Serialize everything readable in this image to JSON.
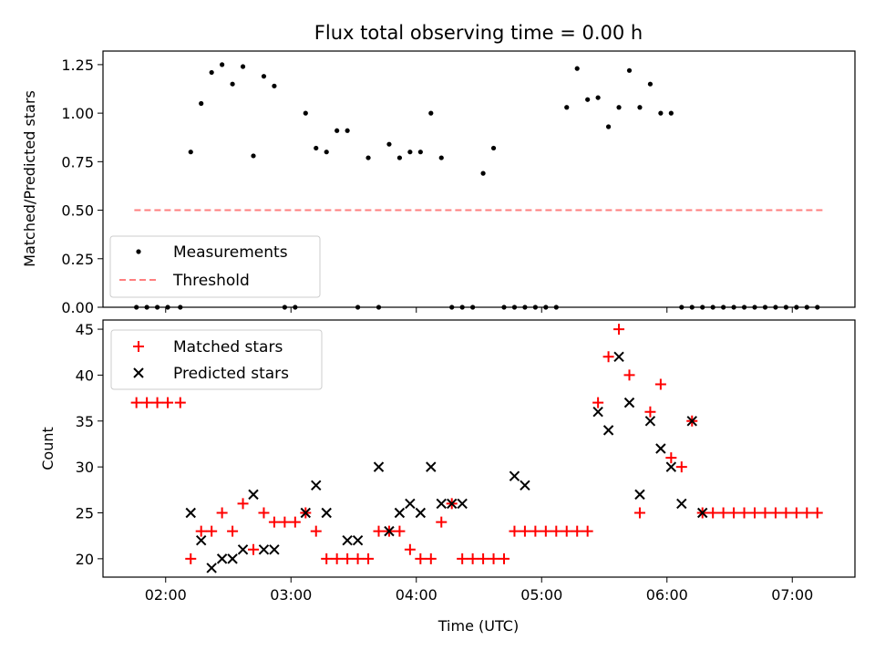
{
  "title": "Flux total observing time = 0.00 h",
  "xlabel": "Time (UTC)",
  "x_ticks": [
    "02:00",
    "03:00",
    "04:00",
    "05:00",
    "06:00",
    "07:00"
  ],
  "colors": {
    "measurements": "#000000",
    "threshold": "#ff7f7f",
    "matched": "#ff0000",
    "predicted": "#000000"
  },
  "chart_data": [
    {
      "type": "scatter",
      "ylabel": "Matched/Predicted stars",
      "xlim": [
        "01:30",
        "07:30"
      ],
      "ylim": [
        0,
        1.32
      ],
      "y_ticks": [
        "0.00",
        "0.25",
        "0.50",
        "0.75",
        "1.00",
        "1.25"
      ],
      "legend": {
        "placement": "lower-left",
        "entries": [
          "Measurements",
          "Threshold"
        ]
      },
      "threshold": {
        "name": "Threshold",
        "y": 0.5,
        "x_start": "01:45",
        "x_end": "07:15"
      },
      "series": [
        {
          "name": "Measurements",
          "x": [
            "01:46",
            "01:51",
            "01:56",
            "02:01",
            "02:07",
            "02:12",
            "02:17",
            "02:22",
            "02:27",
            "02:32",
            "02:37",
            "02:42",
            "02:47",
            "02:52",
            "02:57",
            "03:02",
            "03:07",
            "03:12",
            "03:17",
            "03:22",
            "03:27",
            "03:32",
            "03:37",
            "03:42",
            "03:47",
            "03:52",
            "03:57",
            "04:02",
            "04:07",
            "04:12",
            "04:17",
            "04:22",
            "04:27",
            "04:32",
            "04:37",
            "04:42",
            "04:47",
            "04:52",
            "04:57",
            "05:02",
            "05:07",
            "05:12",
            "05:17",
            "05:22",
            "05:27",
            "05:32",
            "05:37",
            "05:42",
            "05:47",
            "05:52",
            "05:57",
            "06:02",
            "06:07",
            "06:12",
            "06:17",
            "06:22",
            "06:27",
            "06:32",
            "06:37",
            "06:42",
            "06:47",
            "06:52",
            "06:57",
            "07:02",
            "07:07",
            "07:12"
          ],
          "y": [
            0,
            0,
            0,
            0,
            0,
            0.8,
            1.05,
            1.21,
            1.25,
            1.15,
            1.24,
            0.78,
            1.19,
            1.14,
            0,
            0,
            1.0,
            0.82,
            0.8,
            0.91,
            0.91,
            0,
            0.77,
            0,
            0.84,
            0.77,
            0.8,
            0.8,
            1.0,
            0.77,
            0,
            0,
            0,
            0.69,
            0.82,
            0,
            0,
            0,
            0,
            0,
            0,
            1.03,
            1.23,
            1.07,
            1.08,
            0.93,
            1.03,
            1.22,
            1.03,
            1.15,
            1.0,
            1.0,
            0,
            0,
            0,
            0,
            0,
            0,
            0,
            0,
            0,
            0,
            0,
            0,
            0,
            0
          ]
        }
      ]
    },
    {
      "type": "scatter",
      "ylabel": "Count",
      "xlim": [
        "01:30",
        "07:30"
      ],
      "ylim": [
        18,
        46
      ],
      "y_ticks": [
        "20",
        "25",
        "30",
        "35",
        "40",
        "45"
      ],
      "legend": {
        "placement": "top-left",
        "entries": [
          "Matched stars",
          "Predicted stars"
        ]
      },
      "series": [
        {
          "name": "Matched stars",
          "x": [
            "01:46",
            "01:51",
            "01:56",
            "02:01",
            "02:07",
            "02:12",
            "02:17",
            "02:22",
            "02:27",
            "02:32",
            "02:37",
            "02:42",
            "02:47",
            "02:52",
            "02:57",
            "03:02",
            "03:07",
            "03:12",
            "03:17",
            "03:22",
            "03:27",
            "03:32",
            "03:37",
            "03:42",
            "03:47",
            "03:52",
            "03:57",
            "04:02",
            "04:07",
            "04:12",
            "04:17",
            "04:22",
            "04:27",
            "04:32",
            "04:37",
            "04:42",
            "04:47",
            "04:52",
            "04:57",
            "05:02",
            "05:07",
            "05:12",
            "05:17",
            "05:22",
            "05:27",
            "05:32",
            "05:37",
            "05:42",
            "05:47",
            "05:52",
            "05:57",
            "06:02",
            "06:07",
            "06:12",
            "06:17",
            "06:22",
            "06:27",
            "06:32",
            "06:37",
            "06:42",
            "06:47",
            "06:52",
            "06:57",
            "07:02",
            "07:07",
            "07:12"
          ],
          "y": [
            37,
            37,
            37,
            37,
            37,
            20,
            23,
            23,
            25,
            23,
            26,
            21,
            25,
            24,
            24,
            24,
            25,
            23,
            20,
            20,
            20,
            20,
            20,
            23,
            23,
            23,
            21,
            20,
            20,
            24,
            26,
            20,
            20,
            20,
            20,
            20,
            23,
            23,
            23,
            23,
            23,
            23,
            23,
            23,
            37,
            42,
            45,
            40,
            25,
            36,
            39,
            31,
            30,
            35,
            25,
            25,
            25,
            25,
            25,
            25,
            25,
            25,
            25,
            25,
            25,
            25
          ]
        },
        {
          "name": "Predicted stars",
          "x": [
            "02:12",
            "02:17",
            "02:22",
            "02:27",
            "02:32",
            "02:37",
            "02:42",
            "02:47",
            "02:52",
            "03:07",
            "03:12",
            "03:17",
            "03:27",
            "03:32",
            "03:42",
            "03:47",
            "03:52",
            "03:57",
            "04:02",
            "04:07",
            "04:12",
            "04:17",
            "04:22",
            "04:47",
            "04:52",
            "05:27",
            "05:32",
            "05:37",
            "05:42",
            "05:47",
            "05:52",
            "05:57",
            "06:02",
            "06:07",
            "06:12",
            "06:17"
          ],
          "y": [
            25,
            22,
            19,
            20,
            20,
            21,
            27,
            21,
            21,
            25,
            28,
            25,
            22,
            22,
            30,
            23,
            25,
            26,
            25,
            30,
            26,
            26,
            26,
            29,
            28,
            36,
            34,
            42,
            37,
            27,
            35,
            32,
            30,
            26,
            35,
            25
          ]
        }
      ]
    }
  ]
}
